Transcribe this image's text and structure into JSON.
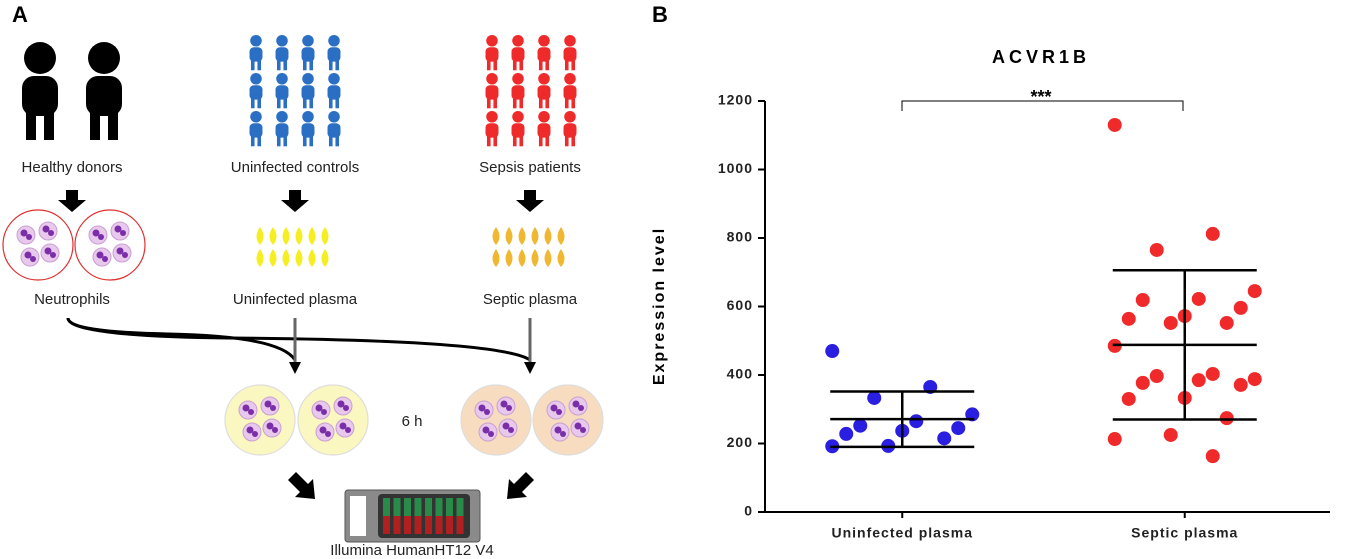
{
  "panel_a": {
    "label": "A",
    "groups": [
      "Healthy donors",
      "Uninfected controls",
      "Sepsis patients"
    ],
    "samples": [
      "Neutrophils",
      "Uninfected plasma",
      "Septic plasma"
    ],
    "duration": "6 h",
    "platform": "Illumina HumanHT12 V4"
  },
  "chart_data": {
    "type": "dot",
    "panel_label": "B",
    "title": "ACVR1B",
    "ylabel": "Expression level",
    "annotation": "***",
    "categories": [
      "Uninfected plasma",
      "Septic plasma"
    ],
    "groups": [
      {
        "color": "#2a1ee0",
        "values": [
          470,
          365,
          333,
          285,
          265,
          252,
          245,
          237,
          228,
          215,
          193,
          192
        ],
        "mean": 271,
        "sd": 81
      },
      {
        "color": "#f02a2a",
        "values": [
          1130,
          812,
          765,
          645,
          622,
          619,
          596,
          572,
          564,
          552,
          552,
          485,
          403,
          397,
          388,
          385,
          377,
          371,
          333,
          330,
          274,
          225,
          213,
          163
        ],
        "mean": 488,
        "sd": 218
      }
    ],
    "ylim": [
      0,
      1200
    ],
    "yticks": [
      0,
      200,
      400,
      600,
      800,
      1000,
      1200
    ]
  }
}
